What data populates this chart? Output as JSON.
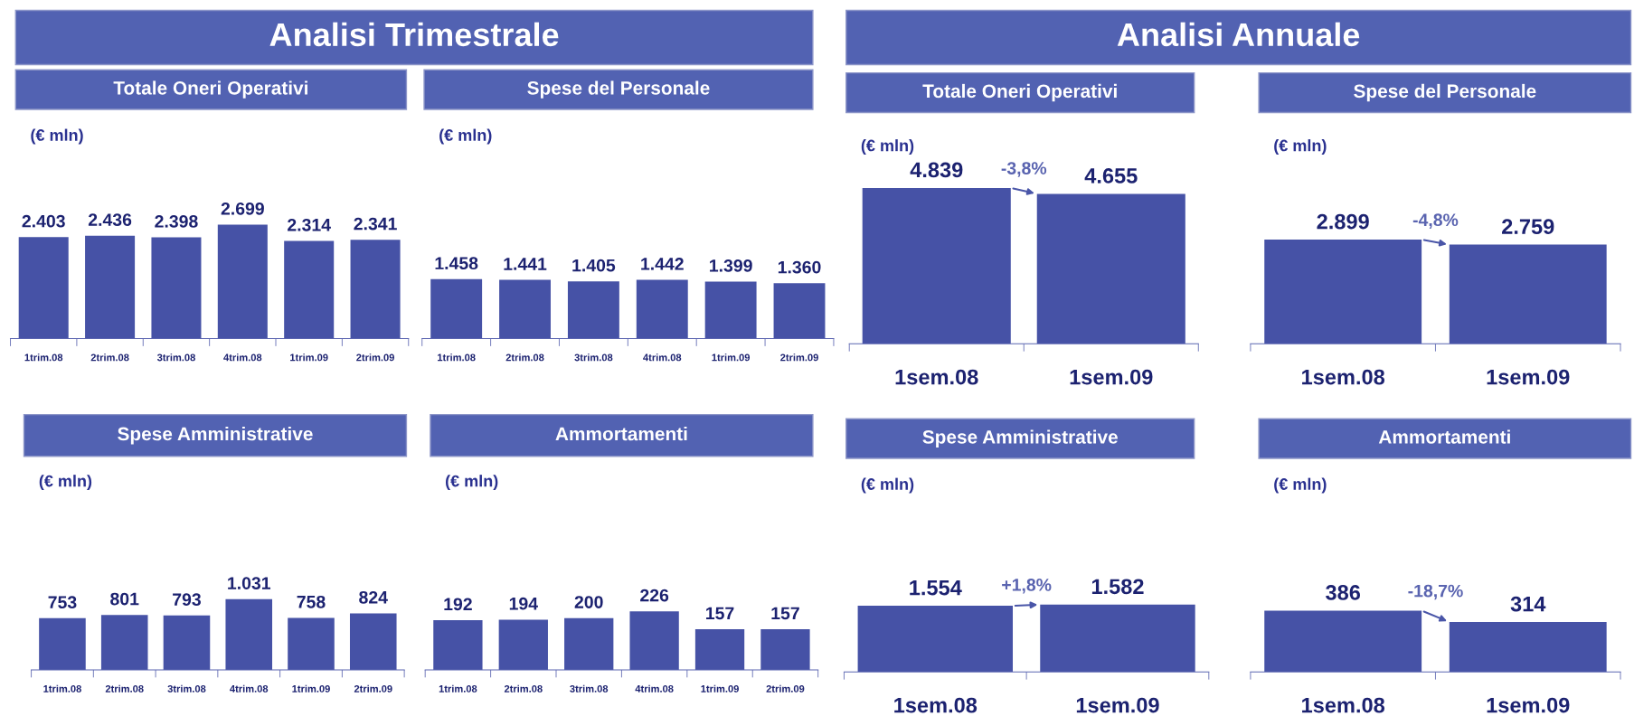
{
  "chart_data": [
    {
      "type": "bar",
      "title": "Analisi Trimestrale",
      "subtitle": "Totale Oneri Operativi",
      "ylabel": "(€ mln)",
      "categories": [
        "1trim.08",
        "2trim.08",
        "3trim.08",
        "4trim.08",
        "1trim.09",
        "2trim.09"
      ],
      "values": [
        2403,
        2436,
        2398,
        2699,
        2314,
        2341
      ],
      "value_labels": [
        "2.403",
        "2.436",
        "2.398",
        "2.699",
        "2.314",
        "2.341"
      ],
      "color": "#4652a6"
    },
    {
      "type": "bar",
      "subtitle": "Spese del Personale",
      "ylabel": "(€ mln)",
      "categories": [
        "1trim.08",
        "2trim.08",
        "3trim.08",
        "4trim.08",
        "1trim.09",
        "2trim.09"
      ],
      "values": [
        1458,
        1441,
        1405,
        1442,
        1399,
        1360
      ],
      "value_labels": [
        "1.458",
        "1.441",
        "1.405",
        "1.442",
        "1.399",
        "1.360"
      ],
      "color": "#4652a6"
    },
    {
      "type": "bar",
      "title": "Analisi Annuale",
      "subtitle": "Totale Oneri Operativi",
      "ylabel": "(€ mln)",
      "categories": [
        "1sem.08",
        "1sem.09"
      ],
      "values": [
        4839,
        4655
      ],
      "value_labels": [
        "4.839",
        "4.655"
      ],
      "color": "#4652a6",
      "annotations": [
        "-3,8%"
      ]
    },
    {
      "type": "bar",
      "subtitle": "Spese del Personale",
      "ylabel": "(€ mln)",
      "categories": [
        "1sem.08",
        "1sem.09"
      ],
      "values": [
        2899,
        2759
      ],
      "value_labels": [
        "2.899",
        "2.759"
      ],
      "color": "#4652a6",
      "annotations": [
        "-4,8%"
      ]
    },
    {
      "type": "bar",
      "subtitle": "Spese Amministrative",
      "ylabel": "(€ mln)",
      "categories": [
        "1trim.08",
        "2trim.08",
        "3trim.08",
        "4trim.08",
        "1trim.09",
        "2trim.09"
      ],
      "values": [
        753,
        801,
        793,
        1031,
        758,
        824
      ],
      "value_labels": [
        "753",
        "801",
        "793",
        "1.031",
        "758",
        "824"
      ],
      "color": "#4652a6"
    },
    {
      "type": "bar",
      "subtitle": "Ammortamenti",
      "ylabel": "(€ mln)",
      "categories": [
        "1trim.08",
        "2trim.08",
        "3trim.08",
        "4trim.08",
        "1trim.09",
        "2trim.09"
      ],
      "values": [
        192,
        194,
        200,
        226,
        157,
        157
      ],
      "value_labels": [
        "192",
        "194",
        "200",
        "226",
        "157",
        "157"
      ],
      "color": "#4652a6"
    },
    {
      "type": "bar",
      "subtitle": "Spese Amministrative",
      "ylabel": "(€ mln)",
      "categories": [
        "1sem.08",
        "1sem.09"
      ],
      "values": [
        1554,
        1582
      ],
      "value_labels": [
        "1.554",
        "1.582"
      ],
      "color": "#4652a6",
      "annotations": [
        "+1,8%"
      ]
    },
    {
      "type": "bar",
      "subtitle": "Ammortamenti",
      "ylabel": "(€ mln)",
      "categories": [
        "1sem.08",
        "1sem.09"
      ],
      "values": [
        386,
        314
      ],
      "value_labels": [
        "386",
        "314"
      ],
      "color": "#4652a6",
      "annotations": [
        "-18,7%"
      ]
    }
  ]
}
